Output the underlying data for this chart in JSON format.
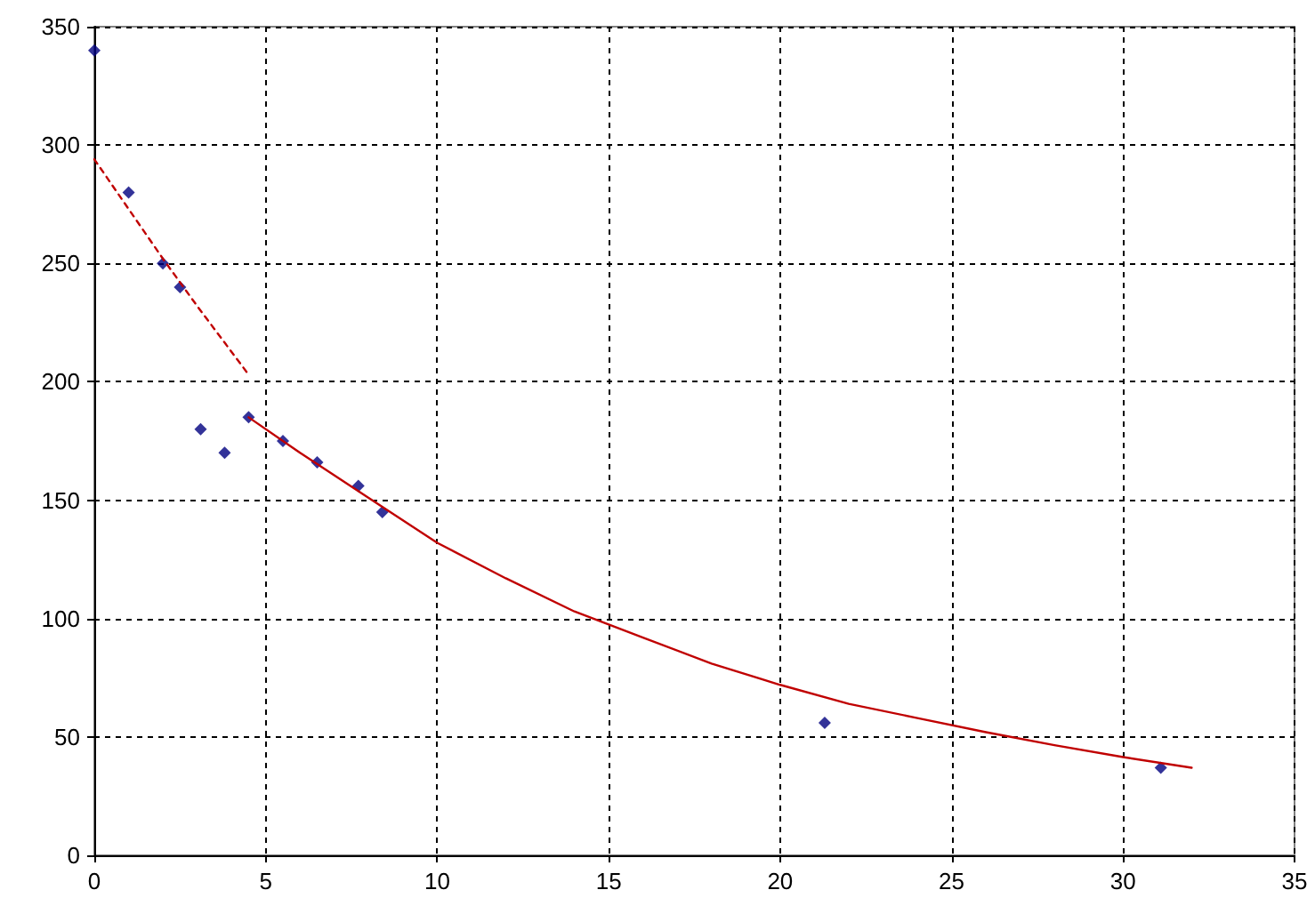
{
  "chart_data": {
    "type": "scatter",
    "xlim": [
      0,
      35
    ],
    "ylim": [
      0,
      350
    ],
    "xticks": [
      0,
      5,
      10,
      15,
      20,
      25,
      30,
      35
    ],
    "yticks": [
      0,
      50,
      100,
      150,
      200,
      250,
      300,
      350
    ],
    "grid": true,
    "series": [
      {
        "color": "#000080",
        "marker": "diamond",
        "x": [
          0,
          1,
          2,
          2.5,
          3.1,
          3.8,
          4.5,
          5.5,
          6.5,
          7.7,
          8.4,
          21.3,
          31.1
        ],
        "values": [
          340,
          280,
          250,
          240,
          180,
          170,
          185,
          175,
          166,
          156,
          145,
          56,
          37
        ]
      },
      {
        "type": "line",
        "color": "#c00000",
        "line_style": "dashed",
        "marker": "none",
        "x": [
          0,
          1,
          2,
          3,
          4.45
        ],
        "values": [
          294,
          273,
          252,
          232,
          204
        ]
      },
      {
        "type": "line",
        "color": "#c00000",
        "line_style": "solid",
        "marker": "none",
        "x": [
          4.5,
          6,
          8,
          10,
          12,
          14,
          16,
          18,
          20,
          22,
          24,
          26,
          28,
          30,
          32
        ],
        "values": [
          185,
          170,
          151,
          132,
          117,
          103,
          92,
          81,
          72,
          64,
          58,
          52,
          46.5,
          41.5,
          37
        ]
      }
    ]
  }
}
